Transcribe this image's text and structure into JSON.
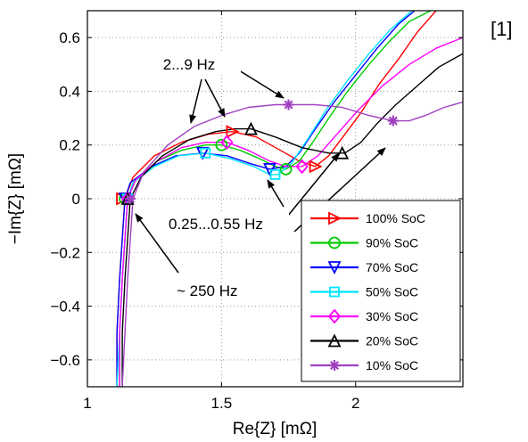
{
  "reference": "[1]",
  "chart_data": {
    "type": "line",
    "xlabel": "Re{Z} [mΩ]",
    "ylabel": "−Im{Z} [mΩ]",
    "xlim": [
      1,
      2.4
    ],
    "ylim": [
      -0.7,
      0.7
    ],
    "xticks": [
      1,
      1.5,
      2
    ],
    "yticks": [
      0.6,
      0.4,
      0.2,
      0,
      -0.2,
      -0.4,
      -0.6
    ],
    "xtick_labels": [
      "1",
      "1.5",
      "2"
    ],
    "ytick_labels": [
      "0.6",
      "0.4",
      "0.2",
      "0",
      "−0.2",
      "−0.4",
      "−0.6"
    ],
    "grid": "dotted",
    "legend_position": "bottom-right",
    "annotations": [
      {
        "text": "2...9 Hz",
        "x": 1.4,
        "y": 0.51
      },
      {
        "text": "0.25...0.55 Hz",
        "x": 1.32,
        "y": -0.09
      },
      {
        "text": "~ 250 Hz",
        "x": 1.33,
        "y": -0.34
      }
    ],
    "series": [
      {
        "name": "100% SoC",
        "color": "#ff0000",
        "marker": "triangle-right",
        "x": [
          1.11,
          1.11,
          1.12,
          1.13,
          1.14,
          1.17,
          1.25,
          1.35,
          1.45,
          1.54,
          1.63,
          1.72,
          1.79,
          1.85,
          1.9,
          1.96,
          2.02,
          2.09,
          2.16,
          2.23,
          2.3
        ],
        "y": [
          -0.7,
          -0.5,
          -0.3,
          -0.15,
          0,
          0.08,
          0.16,
          0.21,
          0.24,
          0.25,
          0.23,
          0.18,
          0.14,
          0.12,
          0.16,
          0.24,
          0.32,
          0.43,
          0.52,
          0.62,
          0.7
        ],
        "markers": [
          {
            "x": 1.13,
            "y": 0
          },
          {
            "x": 1.54,
            "y": 0.25
          },
          {
            "x": 1.85,
            "y": 0.12
          }
        ]
      },
      {
        "name": "90% SoC",
        "color": "#00cc00",
        "marker": "circle",
        "x": [
          1.12,
          1.12,
          1.13,
          1.14,
          1.15,
          1.18,
          1.26,
          1.35,
          1.44,
          1.5,
          1.57,
          1.64,
          1.7,
          1.74,
          1.79,
          1.84,
          1.9,
          1.97,
          2.05,
          2.13,
          2.2,
          2.28
        ],
        "y": [
          -0.7,
          -0.5,
          -0.3,
          -0.15,
          0,
          0.07,
          0.14,
          0.18,
          0.2,
          0.2,
          0.18,
          0.15,
          0.12,
          0.11,
          0.14,
          0.21,
          0.3,
          0.4,
          0.5,
          0.59,
          0.66,
          0.7
        ],
        "markers": [
          {
            "x": 1.14,
            "y": 0
          },
          {
            "x": 1.5,
            "y": 0.2
          },
          {
            "x": 1.74,
            "y": 0.11
          }
        ]
      },
      {
        "name": "70% SoC",
        "color": "#0000ff",
        "marker": "triangle-down",
        "x": [
          1.11,
          1.11,
          1.12,
          1.13,
          1.14,
          1.16,
          1.24,
          1.33,
          1.43,
          1.52,
          1.61,
          1.68,
          1.74,
          1.79,
          1.85,
          1.92,
          2.0,
          2.08,
          2.16,
          2.22
        ],
        "y": [
          -0.7,
          -0.5,
          -0.3,
          -0.15,
          0,
          0.06,
          0.12,
          0.16,
          0.17,
          0.16,
          0.13,
          0.11,
          0.12,
          0.17,
          0.26,
          0.36,
          0.46,
          0.56,
          0.65,
          0.7
        ],
        "markers": [
          {
            "x": 1.14,
            "y": 0
          },
          {
            "x": 1.43,
            "y": 0.17
          },
          {
            "x": 1.68,
            "y": 0.11
          }
        ]
      },
      {
        "name": "50% SoC",
        "color": "#00e5ff",
        "marker": "square",
        "x": [
          1.11,
          1.12,
          1.13,
          1.14,
          1.15,
          1.17,
          1.25,
          1.34,
          1.44,
          1.53,
          1.62,
          1.68,
          1.71,
          1.76,
          1.82,
          1.89,
          1.97,
          2.05,
          2.13,
          2.21
        ],
        "y": [
          -0.7,
          -0.5,
          -0.3,
          -0.15,
          0,
          0.06,
          0.12,
          0.16,
          0.17,
          0.15,
          0.12,
          0.09,
          0.09,
          0.13,
          0.22,
          0.33,
          0.44,
          0.54,
          0.63,
          0.7
        ],
        "markers": [
          {
            "x": 1.15,
            "y": 0
          },
          {
            "x": 1.44,
            "y": 0.17
          },
          {
            "x": 1.7,
            "y": 0.09
          }
        ]
      },
      {
        "name": "30% SoC",
        "color": "#ff00ff",
        "marker": "diamond",
        "x": [
          1.12,
          1.12,
          1.13,
          1.14,
          1.15,
          1.18,
          1.26,
          1.35,
          1.44,
          1.52,
          1.6,
          1.68,
          1.74,
          1.8,
          1.86,
          1.93,
          2.01,
          2.1,
          2.2,
          2.3,
          2.4
        ],
        "y": [
          -0.7,
          -0.5,
          -0.3,
          -0.15,
          0,
          0.07,
          0.14,
          0.19,
          0.21,
          0.21,
          0.18,
          0.14,
          0.12,
          0.12,
          0.16,
          0.24,
          0.33,
          0.42,
          0.5,
          0.56,
          0.6
        ],
        "markers": [
          {
            "x": 1.15,
            "y": 0
          },
          {
            "x": 1.52,
            "y": 0.21
          },
          {
            "x": 1.8,
            "y": 0.12
          }
        ]
      },
      {
        "name": "20% SoC",
        "color": "#000000",
        "marker": "triangle-up",
        "x": [
          1.13,
          1.13,
          1.14,
          1.15,
          1.16,
          1.2,
          1.28,
          1.38,
          1.48,
          1.55,
          1.61,
          1.7,
          1.8,
          1.9,
          1.96,
          2.02,
          2.08,
          2.15,
          2.23,
          2.31,
          2.4
        ],
        "y": [
          -0.7,
          -0.5,
          -0.3,
          -0.15,
          0,
          0.08,
          0.16,
          0.22,
          0.25,
          0.26,
          0.26,
          0.23,
          0.19,
          0.17,
          0.17,
          0.21,
          0.28,
          0.35,
          0.42,
          0.49,
          0.54
        ],
        "markers": [
          {
            "x": 1.15,
            "y": 0
          },
          {
            "x": 1.61,
            "y": 0.26
          },
          {
            "x": 1.95,
            "y": 0.17
          }
        ]
      },
      {
        "name": "10% SoC",
        "color": "#a040c0",
        "marker": "asterisk",
        "x": [
          1.13,
          1.14,
          1.15,
          1.16,
          1.17,
          1.21,
          1.3,
          1.4,
          1.5,
          1.6,
          1.7,
          1.75,
          1.85,
          1.95,
          2.05,
          2.14,
          2.2,
          2.26,
          2.33,
          2.4
        ],
        "y": [
          -0.7,
          -0.5,
          -0.3,
          -0.15,
          0,
          0.1,
          0.2,
          0.27,
          0.31,
          0.34,
          0.35,
          0.35,
          0.35,
          0.34,
          0.31,
          0.29,
          0.29,
          0.31,
          0.34,
          0.36
        ],
        "markers": [
          {
            "x": 1.16,
            "y": 0
          },
          {
            "x": 1.75,
            "y": 0.35
          },
          {
            "x": 2.14,
            "y": 0.29
          }
        ]
      }
    ]
  }
}
